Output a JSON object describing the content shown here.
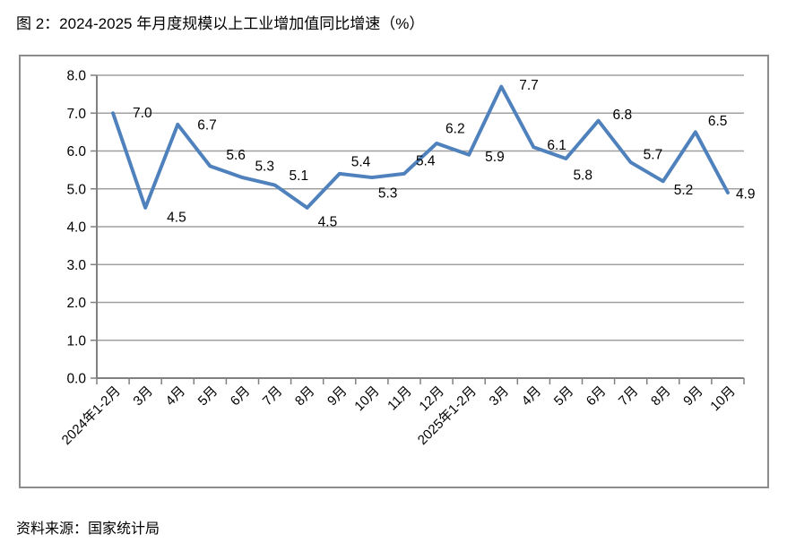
{
  "page": {
    "title": "图 2：2024-2025 年月度规模以上工业增加值同比增速（%）",
    "source": "资料来源：国家统计局"
  },
  "chart_data": {
    "type": "line",
    "title": "2024-2025 年月度规模以上工业增加值同比增速（%）",
    "categories": [
      "2024年1-2月",
      "3月",
      "4月",
      "5月",
      "6月",
      "7月",
      "8月",
      "9月",
      "10月",
      "11月",
      "12月",
      "2025年1-2月",
      "3月",
      "4月",
      "5月",
      "6月",
      "7月",
      "8月",
      "9月",
      "10月"
    ],
    "values": [
      7.0,
      4.5,
      6.7,
      5.6,
      5.3,
      5.1,
      4.5,
      5.4,
      5.3,
      5.4,
      6.2,
      5.9,
      7.7,
      6.1,
      5.8,
      6.8,
      5.7,
      5.2,
      6.5,
      4.9
    ],
    "data_labels": [
      "7.0",
      "4.5",
      "6.7",
      "5.6",
      "5.3",
      "5.1",
      "4.5",
      "5.4",
      "5.3",
      "5.4",
      "6.2",
      "5.9",
      "7.7",
      "6.1",
      "5.8",
      "6.8",
      "5.7",
      "5.2",
      "6.5",
      "4.9"
    ],
    "xlabel": "",
    "ylabel": "",
    "y_axis": {
      "min": 0.0,
      "max": 8.0,
      "step": 1.0,
      "tick_labels": [
        "0.0",
        "1.0",
        "2.0",
        "3.0",
        "4.0",
        "5.0",
        "6.0",
        "7.0",
        "8.0"
      ]
    },
    "ylim": [
      0.0,
      8.0
    ],
    "grid": true,
    "legend_position": "none",
    "line_color": "#4F81BD",
    "gridline_color": "#a0a0a0",
    "axis_color": "#808080",
    "label_color": "#000000"
  }
}
